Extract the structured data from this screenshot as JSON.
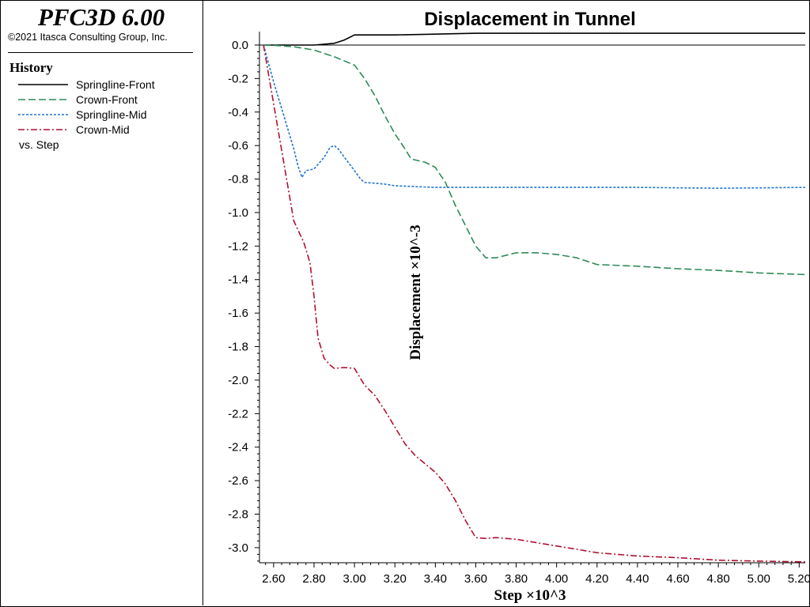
{
  "app": {
    "title": "PFC3D 6.00",
    "copyright": "©2021 Itasca Consulting Group, Inc."
  },
  "history": {
    "title": "History",
    "vs_label": "vs. Step"
  },
  "chart_data": {
    "type": "line",
    "title": "Displacement in Tunnel",
    "xlabel": "Step ×10^3",
    "ylabel": "Displacement ×10^-3",
    "xlim": [
      2.53,
      5.23
    ],
    "ylim": [
      -3.09,
      0.08
    ],
    "x_ticks": [
      "2.60",
      "2.80",
      "3.00",
      "3.20",
      "3.40",
      "3.60",
      "3.80",
      "4.00",
      "4.20",
      "4.40",
      "4.60",
      "4.80",
      "5.00",
      "5.20"
    ],
    "y_ticks": [
      "0.0",
      "-0.2",
      "-0.4",
      "-0.6",
      "-0.8",
      "-1.0",
      "-1.2",
      "-1.4",
      "-1.6",
      "-1.8",
      "-2.0",
      "-2.2",
      "-2.4",
      "-2.6",
      "-2.8",
      "-3.0"
    ],
    "grid": false,
    "zero_line": true,
    "series": [
      {
        "name": "Springline-Front",
        "color": "#000000",
        "dash": "solid",
        "x": [
          2.55,
          2.7,
          2.8,
          2.9,
          2.95,
          3.0,
          3.1,
          3.2,
          3.4,
          3.6,
          4.0,
          4.5,
          5.23
        ],
        "y": [
          0.0,
          0.0,
          0.0,
          0.01,
          0.03,
          0.06,
          0.06,
          0.06,
          0.065,
          0.07,
          0.07,
          0.07,
          0.07
        ]
      },
      {
        "name": "Crown-Front",
        "color": "#2e8b57",
        "dash": "dashed",
        "x": [
          2.55,
          2.6,
          2.7,
          2.8,
          2.9,
          3.0,
          3.05,
          3.1,
          3.15,
          3.2,
          3.25,
          3.28,
          3.35,
          3.4,
          3.45,
          3.5,
          3.55,
          3.6,
          3.65,
          3.7,
          3.8,
          3.9,
          4.0,
          4.1,
          4.2,
          4.4,
          4.6,
          4.8,
          5.0,
          5.23
        ],
        "y": [
          0.0,
          -0.002,
          -0.01,
          -0.03,
          -0.07,
          -0.12,
          -0.2,
          -0.3,
          -0.42,
          -0.53,
          -0.62,
          -0.68,
          -0.7,
          -0.73,
          -0.82,
          -0.96,
          -1.08,
          -1.2,
          -1.27,
          -1.27,
          -1.24,
          -1.24,
          -1.25,
          -1.27,
          -1.31,
          -1.32,
          -1.335,
          -1.345,
          -1.36,
          -1.37
        ]
      },
      {
        "name": "Springline-Mid",
        "color": "#1f75d0",
        "dash": "dotted",
        "x": [
          2.55,
          2.6,
          2.65,
          2.7,
          2.72,
          2.74,
          2.76,
          2.8,
          2.85,
          2.88,
          2.9,
          2.92,
          2.95,
          3.0,
          3.03,
          3.05,
          3.1,
          3.15,
          3.2,
          3.3,
          3.4,
          3.6,
          4.0,
          4.4,
          4.8,
          5.23
        ],
        "y": [
          0.0,
          -0.22,
          -0.42,
          -0.62,
          -0.72,
          -0.79,
          -0.75,
          -0.74,
          -0.67,
          -0.61,
          -0.6,
          -0.62,
          -0.67,
          -0.75,
          -0.8,
          -0.82,
          -0.825,
          -0.83,
          -0.84,
          -0.845,
          -0.85,
          -0.85,
          -0.85,
          -0.85,
          -0.855,
          -0.85
        ]
      },
      {
        "name": "Crown-Mid",
        "color": "#b01030",
        "dash": "dashdot",
        "x": [
          2.55,
          2.6,
          2.65,
          2.7,
          2.75,
          2.78,
          2.8,
          2.82,
          2.85,
          2.88,
          2.9,
          2.95,
          3.0,
          3.05,
          3.1,
          3.15,
          3.2,
          3.25,
          3.3,
          3.35,
          3.4,
          3.45,
          3.5,
          3.55,
          3.6,
          3.65,
          3.7,
          3.8,
          3.9,
          4.0,
          4.1,
          4.2,
          4.4,
          4.6,
          4.8,
          5.0,
          5.23
        ],
        "y": [
          0.0,
          -0.35,
          -0.7,
          -1.05,
          -1.18,
          -1.3,
          -1.5,
          -1.75,
          -1.87,
          -1.91,
          -1.93,
          -1.925,
          -1.93,
          -2.03,
          -2.09,
          -2.18,
          -2.28,
          -2.38,
          -2.45,
          -2.5,
          -2.55,
          -2.62,
          -2.72,
          -2.84,
          -2.94,
          -2.945,
          -2.94,
          -2.95,
          -2.97,
          -2.99,
          -3.01,
          -3.03,
          -3.05,
          -3.06,
          -3.075,
          -3.08,
          -3.085
        ]
      }
    ]
  }
}
